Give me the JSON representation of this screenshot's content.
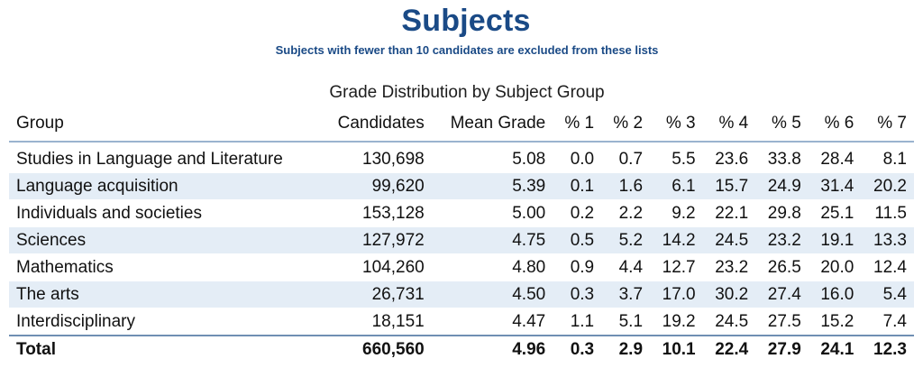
{
  "header": {
    "title": "Subjects",
    "subtitle": "Subjects with fewer than 10 candidates are excluded from these lists"
  },
  "table": {
    "caption": "Grade Distribution by Subject Group",
    "columns": [
      "Group",
      "Candidates",
      "Mean Grade",
      "% 1",
      "% 2",
      "% 3",
      "% 4",
      "% 5",
      "% 6",
      "% 7"
    ],
    "rows": [
      [
        "Studies in Language and Literature",
        "130,698",
        "5.08",
        "0.0",
        "0.7",
        "5.5",
        "23.6",
        "33.8",
        "28.4",
        "8.1"
      ],
      [
        "Language acquisition",
        "99,620",
        "5.39",
        "0.1",
        "1.6",
        "6.1",
        "15.7",
        "24.9",
        "31.4",
        "20.2"
      ],
      [
        "Individuals and societies",
        "153,128",
        "5.00",
        "0.2",
        "2.2",
        "9.2",
        "22.1",
        "29.8",
        "25.1",
        "11.5"
      ],
      [
        "Sciences",
        "127,972",
        "4.75",
        "0.5",
        "5.2",
        "14.2",
        "24.5",
        "23.2",
        "19.1",
        "13.3"
      ],
      [
        "Mathematics",
        "104,260",
        "4.80",
        "0.9",
        "4.4",
        "12.7",
        "23.2",
        "26.5",
        "20.0",
        "12.4"
      ],
      [
        "The arts",
        "26,731",
        "4.50",
        "0.3",
        "3.7",
        "17.0",
        "30.2",
        "27.4",
        "16.0",
        "5.4"
      ],
      [
        "Interdisciplinary",
        "18,151",
        "4.47",
        "1.1",
        "5.1",
        "19.2",
        "24.5",
        "27.5",
        "15.2",
        "7.4"
      ]
    ],
    "total": [
      "Total",
      "660,560",
      "4.96",
      "0.3",
      "2.9",
      "10.1",
      "22.4",
      "27.9",
      "24.1",
      "12.3"
    ]
  }
}
